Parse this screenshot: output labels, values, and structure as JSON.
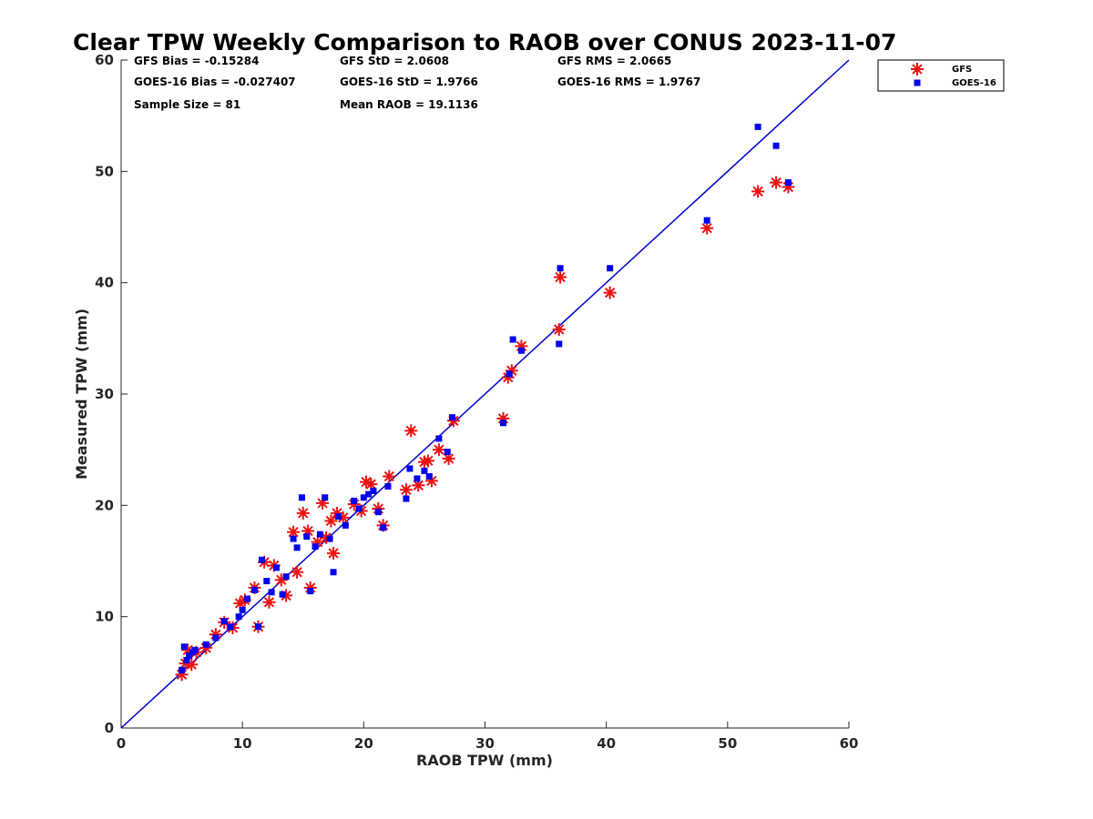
{
  "chart_data": {
    "type": "scatter",
    "title": "Clear TPW Weekly Comparison to RAOB over CONUS 2023-11-07",
    "xlabel": "RAOB TPW (mm)",
    "ylabel": "Measured TPW (mm)",
    "xlim": [
      0,
      60
    ],
    "ylim": [
      0,
      60
    ],
    "xticks": [
      "0",
      "10",
      "20",
      "30",
      "40",
      "50",
      "60"
    ],
    "yticks": [
      "0",
      "10",
      "20",
      "30",
      "40",
      "50",
      "60"
    ],
    "reference_line": {
      "x": [
        0,
        60
      ],
      "y": [
        0,
        60
      ],
      "color": "#0000cc"
    },
    "stats": {
      "gfs_bias": "GFS Bias = -0.15284",
      "gfs_std": "GFS StD = 2.0608",
      "gfs_rms": "GFS RMS = 2.0665",
      "goes_bias": "GOES-16 Bias = -0.027407",
      "goes_std": "GOES-16 StD = 1.9766",
      "goes_rms": "GOES-16 RMS = 1.9767",
      "sample_size": "Sample Size = 81",
      "mean_raob": "Mean RAOB = 19.1136"
    },
    "legend": {
      "position": "top-right-outside",
      "entries": [
        "GFS",
        "GOES-16"
      ]
    },
    "series": [
      {
        "name": "GFS",
        "marker": "asterisk",
        "color": "#ee1111",
        "x": [
          5.0,
          5.3,
          5.5,
          5.8,
          6.2,
          7.0,
          7.8,
          8.5,
          9.2,
          9.8,
          10.2,
          11.0,
          11.3,
          11.8,
          12.2,
          12.6,
          13.2,
          13.6,
          14.2,
          14.5,
          15.0,
          15.4,
          15.6,
          16.2,
          16.6,
          16.9,
          17.3,
          17.5,
          17.8,
          18.3,
          19.2,
          19.8,
          20.2,
          20.6,
          21.2,
          21.6,
          22.1,
          23.5,
          23.9,
          24.5,
          25.0,
          25.3,
          25.6,
          26.2,
          27.0,
          27.4,
          31.5,
          31.9,
          32.2,
          33.0,
          36.1,
          36.2,
          40.3,
          48.3,
          52.5,
          54.0,
          55.0
        ],
        "y": [
          4.8,
          5.8,
          7.0,
          5.7,
          6.8,
          7.2,
          8.4,
          9.5,
          9.0,
          11.2,
          11.5,
          12.6,
          9.1,
          14.9,
          11.3,
          14.6,
          13.3,
          11.9,
          17.6,
          14.0,
          19.3,
          17.7,
          12.6,
          16.7,
          20.2,
          17.1,
          18.6,
          15.7,
          19.3,
          18.9,
          20.1,
          19.5,
          22.1,
          21.9,
          19.7,
          18.2,
          22.6,
          21.4,
          26.7,
          21.8,
          23.9,
          24.0,
          22.2,
          25.0,
          24.2,
          27.6,
          27.8,
          31.5,
          32.1,
          34.3,
          35.8,
          40.5,
          39.1,
          44.9,
          48.2,
          49.0,
          48.6
        ]
      },
      {
        "name": "GOES-16",
        "marker": "square",
        "color": "#0000ee",
        "x": [
          5.0,
          5.2,
          5.4,
          5.6,
          5.9,
          6.1,
          7.0,
          7.8,
          8.5,
          9.0,
          9.7,
          10.0,
          10.4,
          11.0,
          11.3,
          11.6,
          12.0,
          12.4,
          12.8,
          13.3,
          13.6,
          14.2,
          14.5,
          14.9,
          15.3,
          15.6,
          16.0,
          16.4,
          16.8,
          17.2,
          17.5,
          17.9,
          18.5,
          19.2,
          19.6,
          20.0,
          20.4,
          20.8,
          21.2,
          21.6,
          22.0,
          23.5,
          23.8,
          24.4,
          25.0,
          25.4,
          26.2,
          26.9,
          27.3,
          31.5,
          32.0,
          32.3,
          33.0,
          36.1,
          36.2,
          40.3,
          48.3,
          52.5,
          54.0,
          55.0
        ],
        "y": [
          5.2,
          7.3,
          6.1,
          6.5,
          6.8,
          7.0,
          7.5,
          8.1,
          9.6,
          9.1,
          10.0,
          10.6,
          11.6,
          12.4,
          9.1,
          15.1,
          13.2,
          12.2,
          14.4,
          12.0,
          13.6,
          17.0,
          16.2,
          20.7,
          17.2,
          12.3,
          16.3,
          17.4,
          20.7,
          17.0,
          14.0,
          19.0,
          18.2,
          20.4,
          19.7,
          20.7,
          21.0,
          21.3,
          19.4,
          18.0,
          21.7,
          20.6,
          23.3,
          22.4,
          23.1,
          22.6,
          26.0,
          24.8,
          27.9,
          27.4,
          31.8,
          34.9,
          33.9,
          34.5,
          41.3,
          41.3,
          45.6,
          54.0,
          52.3,
          49.0
        ]
      }
    ]
  }
}
